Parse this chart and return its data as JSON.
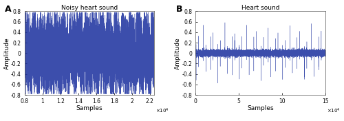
{
  "panel_A_title": "Noisy heart sound",
  "panel_B_title": "Heart sound",
  "xlabel": "Samples",
  "ylabel": "Amplitude",
  "panel_A_label": "A",
  "panel_B_label": "B",
  "xlim_A": [
    8000,
    22500
  ],
  "xlim_B": [
    0,
    15000
  ],
  "ylim": [
    -0.8,
    0.8
  ],
  "yticks": [
    -0.8,
    -0.6,
    -0.4,
    -0.2,
    0,
    0.2,
    0.4,
    0.6,
    0.8
  ],
  "xticks_A": [
    8000,
    10000,
    12000,
    14000,
    16000,
    18000,
    20000,
    22000
  ],
  "xticklabels_A": [
    "0.8",
    "1",
    "1.2",
    "1.4",
    "1.6",
    "1.8",
    "2",
    "2.2"
  ],
  "xticks_B": [
    0,
    5000,
    10000,
    15000
  ],
  "xticklabels_B": [
    "0",
    "5",
    "10",
    "15"
  ],
  "line_color": "#1a2f9e",
  "bg_color": "#ffffff",
  "axes_bg": "#f8f8f8"
}
